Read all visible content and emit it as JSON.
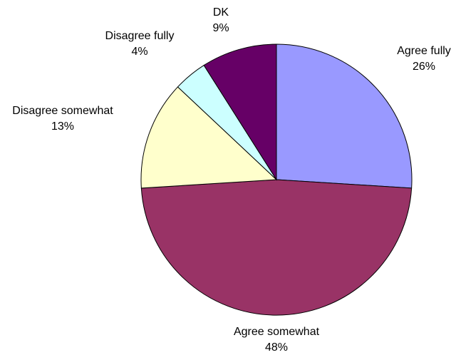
{
  "chart_data": {
    "type": "pie",
    "title": "",
    "start_angle_deg": 0,
    "direction": "clockwise",
    "slices": [
      {
        "label": "Agree fully",
        "value_label": "26%",
        "value": 26,
        "color": "#9999ff"
      },
      {
        "label": "Agree somewhat",
        "value_label": "48%",
        "value": 48,
        "color": "#993366"
      },
      {
        "label": "Disagree somewhat",
        "value_label": "13%",
        "value": 13,
        "color": "#ffffcc"
      },
      {
        "label": "Disagree fully",
        "value_label": "4%",
        "value": 4,
        "color": "#ccffff"
      },
      {
        "label": "DK",
        "value_label": "9%",
        "value": 9,
        "color": "#660066"
      }
    ],
    "border_color": "#000000",
    "legend": "none"
  }
}
